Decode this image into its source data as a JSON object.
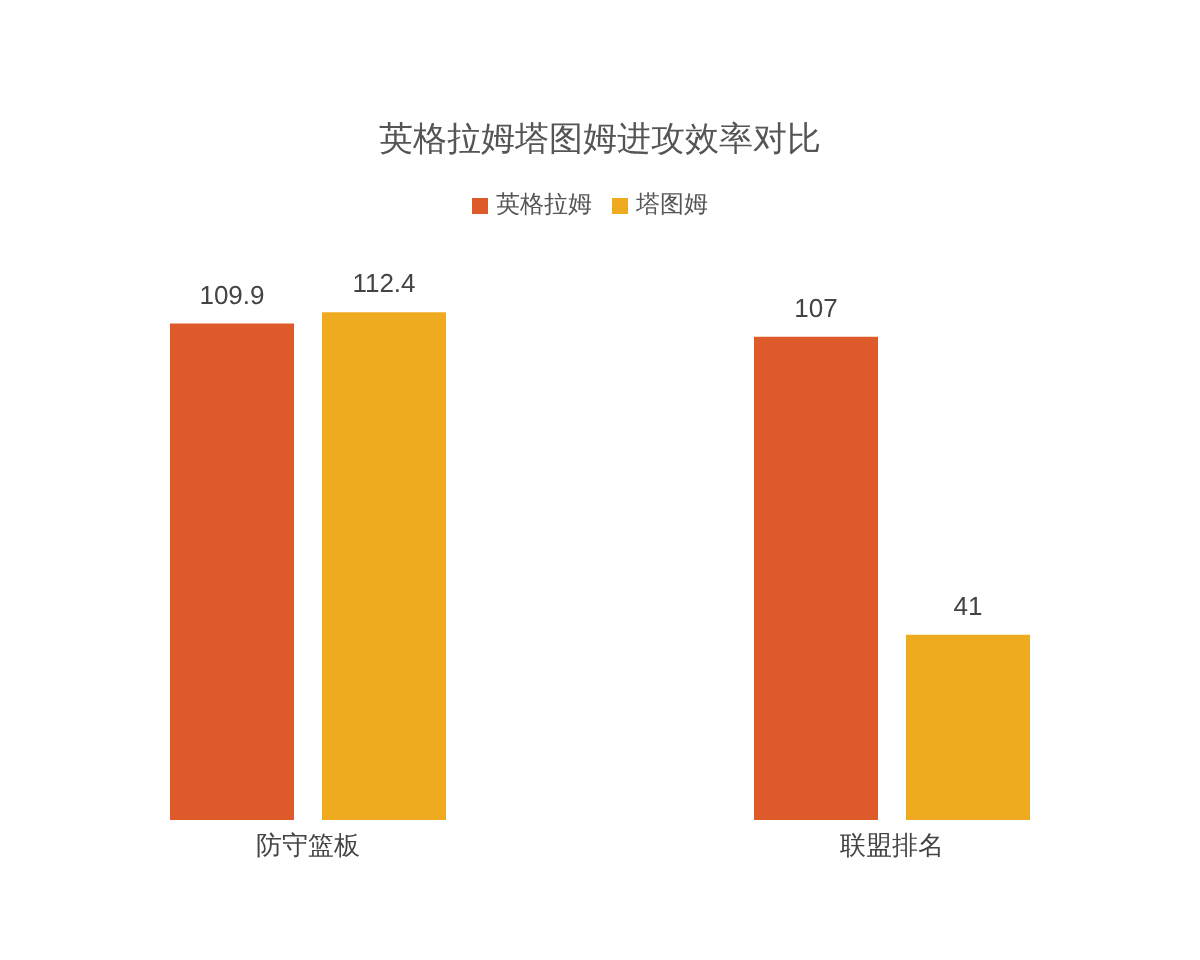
{
  "chart_data": {
    "type": "bar",
    "title": "英格拉姆塔图姆进攻效率对比",
    "categories": [
      "防守篮板",
      "联盟排名"
    ],
    "series": [
      {
        "name": "英格拉姆",
        "color": "#df5a2a",
        "values": [
          109.9,
          107
        ]
      },
      {
        "name": "塔图姆",
        "color": "#eeab1f",
        "values": [
          112.4,
          41
        ]
      }
    ],
    "data_labels": true,
    "legend": "top",
    "tick_labels": "x"
  }
}
